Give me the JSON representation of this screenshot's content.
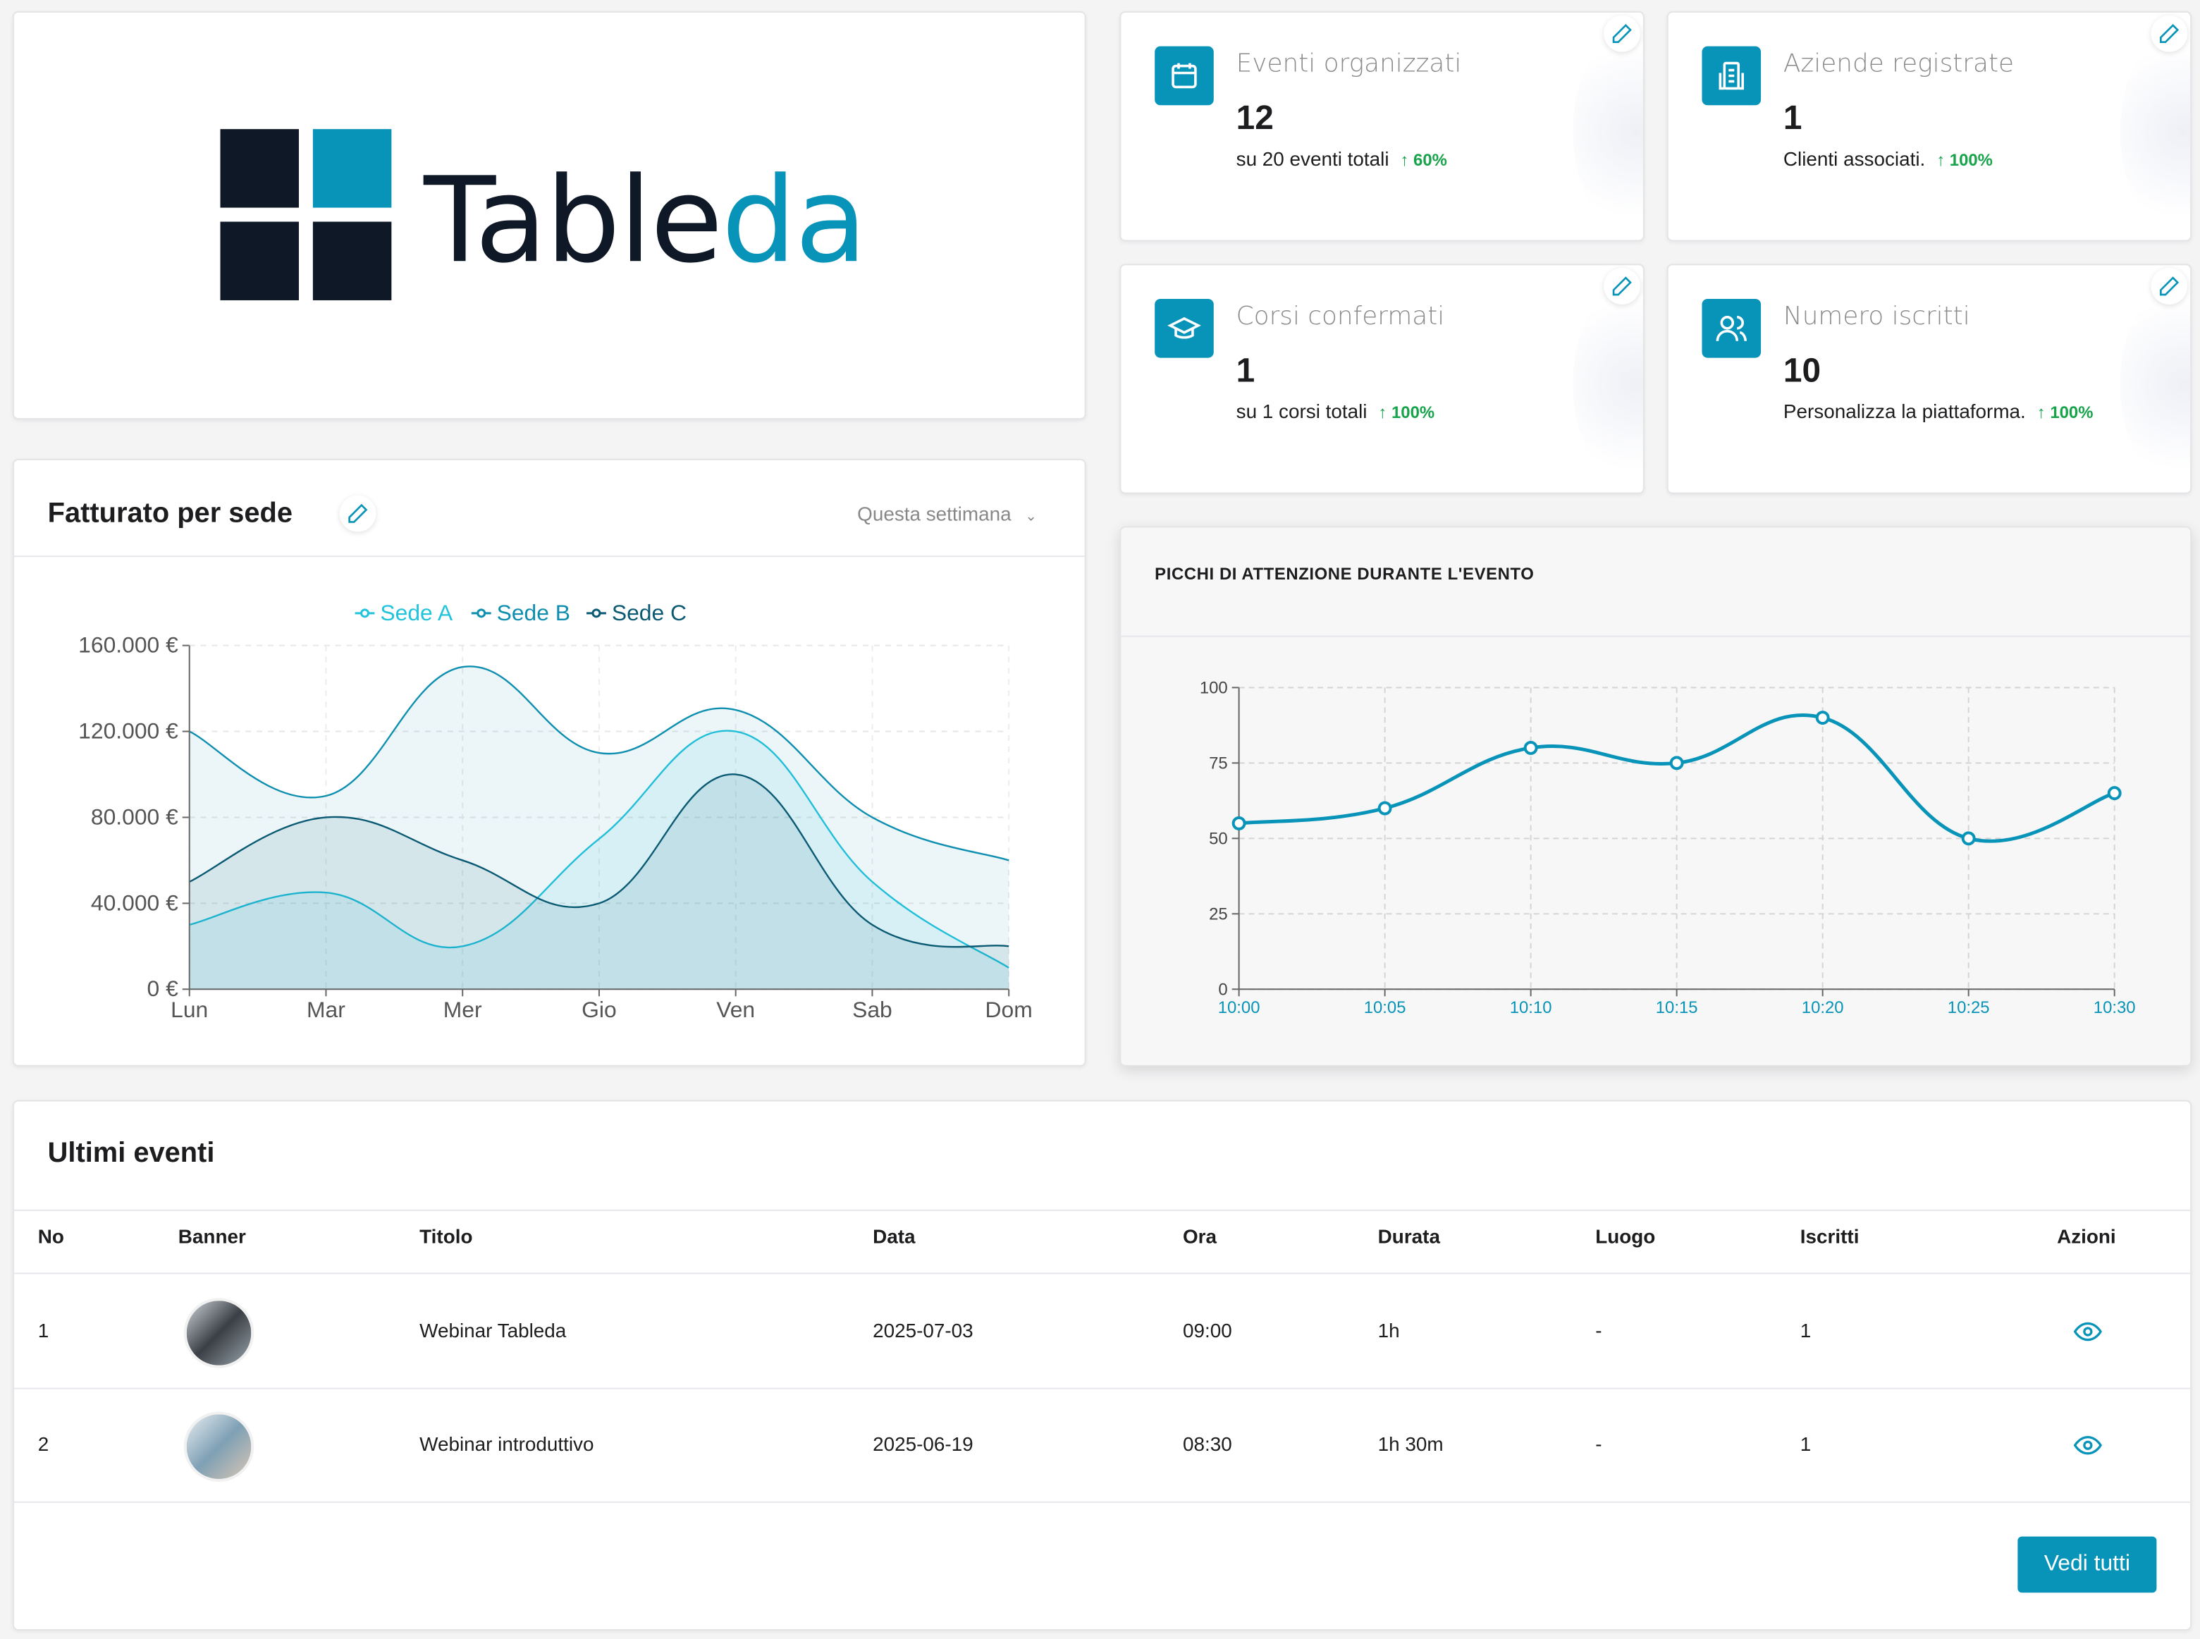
{
  "logo": {
    "text_dark": "Table",
    "text_accent": "da",
    "colors": {
      "dark": "#0f1826",
      "accent": "#0893b9"
    }
  },
  "stats": [
    {
      "icon": "calendar-icon",
      "label": "Eventi organizzati",
      "value": "12",
      "subtitle": "su 20 eventi totali",
      "change": "60%"
    },
    {
      "icon": "building-icon",
      "label": "Aziende registrate",
      "value": "1",
      "subtitle": "Clienti associati.",
      "change": "100%"
    },
    {
      "icon": "graduation-cap-icon",
      "label": "Corsi confermati",
      "value": "1",
      "subtitle": "su 1 corsi totali",
      "change": "100%"
    },
    {
      "icon": "users-icon",
      "label": "Numero iscritti",
      "value": "10",
      "subtitle": "Personalizza la piattaforma.",
      "change": "100%"
    }
  ],
  "revenue": {
    "title": "Fatturato per sede",
    "period": "Questa settimana"
  },
  "attention": {
    "title": "PICCHI DI ATTENZIONE DURANTE L'EVENTO"
  },
  "chart_data": [
    {
      "type": "area",
      "categories": [
        "Lun",
        "Mar",
        "Mer",
        "Gio",
        "Ven",
        "Sab",
        "Dom"
      ],
      "yticks": [
        "0 €",
        "40.000 €",
        "80.000 €",
        "120.000 €",
        "160.000 €"
      ],
      "ylim": [
        0,
        160000
      ],
      "grid": true,
      "legend": "top",
      "series": [
        {
          "name": "Sede A",
          "color": "#22c3dc",
          "values": [
            30000,
            45000,
            20000,
            70000,
            120000,
            50000,
            10000
          ]
        },
        {
          "name": "Sede B",
          "color": "#0e8fb0",
          "values": [
            120000,
            90000,
            150000,
            110000,
            130000,
            80000,
            60000
          ]
        },
        {
          "name": "Sede C",
          "color": "#0b5a73",
          "values": [
            50000,
            80000,
            60000,
            40000,
            100000,
            30000,
            20000
          ]
        }
      ]
    },
    {
      "type": "line",
      "categories": [
        "10:00",
        "10:05",
        "10:10",
        "10:15",
        "10:20",
        "10:25",
        "10:30"
      ],
      "yticks": [
        "0",
        "25",
        "50",
        "75",
        "100"
      ],
      "ylim": [
        0,
        100
      ],
      "grid": true,
      "series": [
        {
          "color": "#0893b9",
          "values": [
            55,
            60,
            80,
            75,
            90,
            50,
            65
          ]
        }
      ]
    }
  ],
  "events": {
    "title": "Ultimi eventi",
    "columns": [
      "No",
      "Banner",
      "Titolo",
      "Data",
      "Ora",
      "Durata",
      "Luogo",
      "Iscritti",
      "Azioni"
    ],
    "rows": [
      {
        "no": "1",
        "title": "Webinar Tableda",
        "date": "2025-07-03",
        "time": "09:00",
        "duration": "1h",
        "place": "-",
        "enrolled": "1"
      },
      {
        "no": "2",
        "title": "Webinar introduttivo",
        "date": "2025-06-19",
        "time": "08:30",
        "duration": "1h 30m",
        "place": "-",
        "enrolled": "1"
      }
    ],
    "view_all": "Vedi tutti"
  }
}
